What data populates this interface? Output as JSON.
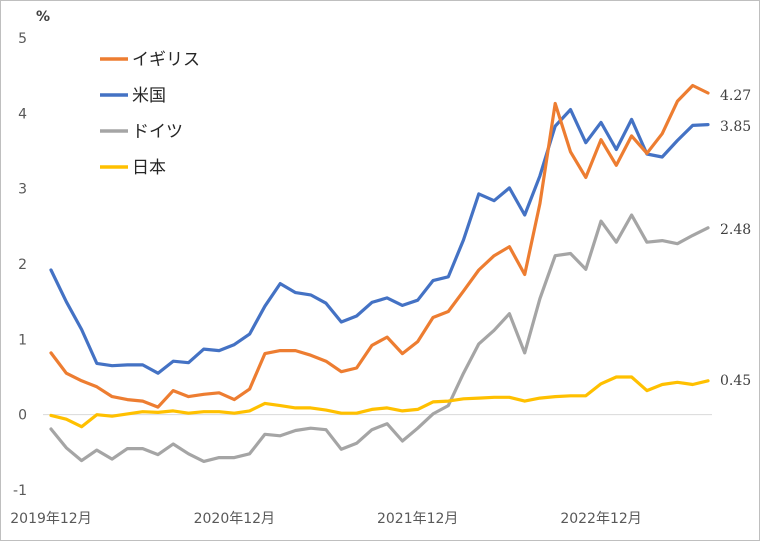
{
  "chart_data": {
    "type": "line",
    "unit_label": "%",
    "ylim": [
      -1,
      5
    ],
    "y_ticks": [
      5,
      4,
      3,
      2,
      1,
      0,
      -1
    ],
    "x_labels": [
      {
        "label": "2019年12月",
        "index": 0
      },
      {
        "label": "2020年12月",
        "index": 12
      },
      {
        "label": "2021年12月",
        "index": 24
      },
      {
        "label": "2022年12月",
        "index": 36
      }
    ],
    "x_count": 44,
    "legend_position": "top-left",
    "grid": false,
    "series": [
      {
        "name": "イギリス",
        "color": "#ED7D31",
        "end_label": "4.27",
        "values": [
          0.82,
          0.55,
          0.45,
          0.37,
          0.24,
          0.2,
          0.18,
          0.1,
          0.32,
          0.24,
          0.27,
          0.29,
          0.2,
          0.34,
          0.81,
          0.85,
          0.85,
          0.79,
          0.71,
          0.57,
          0.62,
          0.92,
          1.03,
          0.81,
          0.97,
          1.29,
          1.37,
          1.64,
          1.92,
          2.11,
          2.23,
          1.86,
          2.8,
          4.13,
          3.49,
          3.15,
          3.65,
          3.31,
          3.7,
          3.47,
          3.73,
          4.16,
          4.37,
          4.27
        ]
      },
      {
        "name": "米国",
        "color": "#4472C4",
        "end_label": "3.85",
        "values": [
          1.92,
          1.5,
          1.13,
          0.68,
          0.65,
          0.66,
          0.66,
          0.55,
          0.71,
          0.69,
          0.87,
          0.85,
          0.93,
          1.07,
          1.44,
          1.74,
          1.62,
          1.59,
          1.48,
          1.23,
          1.31,
          1.49,
          1.55,
          1.45,
          1.52,
          1.78,
          1.83,
          2.32,
          2.93,
          2.84,
          3.01,
          2.65,
          3.17,
          3.83,
          4.05,
          3.61,
          3.88,
          3.52,
          3.92,
          3.46,
          3.42,
          3.64,
          3.84,
          3.85
        ]
      },
      {
        "name": "ドイツ",
        "color": "#A5A5A5",
        "end_label": "2.48",
        "values": [
          -0.19,
          -0.44,
          -0.61,
          -0.47,
          -0.59,
          -0.45,
          -0.45,
          -0.53,
          -0.39,
          -0.52,
          -0.62,
          -0.57,
          -0.57,
          -0.52,
          -0.26,
          -0.28,
          -0.21,
          -0.18,
          -0.2,
          -0.46,
          -0.38,
          -0.2,
          -0.12,
          -0.35,
          -0.18,
          0.01,
          0.12,
          0.55,
          0.94,
          1.12,
          1.34,
          0.82,
          1.54,
          2.11,
          2.14,
          1.93,
          2.57,
          2.29,
          2.65,
          2.29,
          2.31,
          2.27,
          2.38,
          2.48
        ]
      },
      {
        "name": "日本",
        "color": "#FFC000",
        "end_label": "0.45",
        "values": [
          -0.01,
          -0.06,
          -0.16,
          0.0,
          -0.02,
          0.01,
          0.04,
          0.03,
          0.05,
          0.02,
          0.04,
          0.04,
          0.02,
          0.05,
          0.15,
          0.12,
          0.09,
          0.09,
          0.06,
          0.02,
          0.02,
          0.07,
          0.09,
          0.05,
          0.07,
          0.17,
          0.18,
          0.21,
          0.22,
          0.23,
          0.23,
          0.18,
          0.22,
          0.24,
          0.25,
          0.25,
          0.41,
          0.5,
          0.5,
          0.32,
          0.4,
          0.43,
          0.4,
          0.45
        ]
      }
    ]
  }
}
